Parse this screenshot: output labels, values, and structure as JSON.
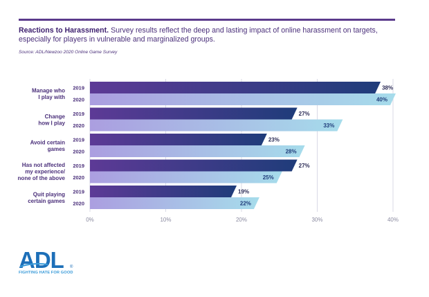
{
  "header": {
    "title_bold": "Reactions to Harassment.",
    "title_rest": " Survey results reflect the deep and lasting impact of online harassment on targets, especially for players in vulnerable and marginalized groups.",
    "source": "Source: ADL/Newzoo 2020 Online Game Survey"
  },
  "logo": {
    "name": "ADL",
    "tagline": "FIGHTING HATE FOR GOOD",
    "color": "#1d6fb8"
  },
  "colors": {
    "series_2019_start": "#5d3a96",
    "series_2019_end": "#1f3c7a",
    "series_2020_start": "#ab9ee0",
    "series_2020_end": "#a6dceb",
    "label": "#4a2f7a"
  },
  "chart_data": {
    "type": "bar",
    "orientation": "horizontal",
    "categories": [
      [
        "Manage who",
        "I play with"
      ],
      [
        "Change",
        "how I play"
      ],
      [
        "Avoid certain",
        "games"
      ],
      [
        "Has not affected",
        "my experience/",
        "none of the above"
      ],
      [
        "Quit playing",
        "certain games"
      ]
    ],
    "series": [
      {
        "name": "2019",
        "values": [
          38,
          27,
          23,
          27,
          19
        ]
      },
      {
        "name": "2020",
        "values": [
          40,
          33,
          28,
          25,
          22
        ]
      }
    ],
    "value_suffix": "%",
    "xlim": [
      0,
      40
    ],
    "xticks": [
      "0%",
      "10%",
      "20%",
      "30%",
      "40%"
    ],
    "tick_values": [
      0,
      10,
      20,
      30,
      40
    ],
    "grid": true,
    "title": "Reactions to Harassment"
  }
}
